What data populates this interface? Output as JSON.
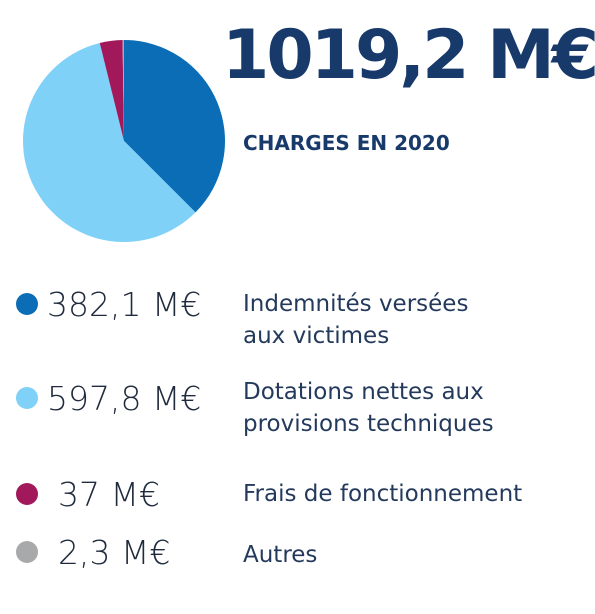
{
  "header": {
    "total": "1019,2 M€",
    "subtitle": "CHARGES EN 2020"
  },
  "chart_data": {
    "type": "pie",
    "title": "CHARGES EN 2020",
    "total": 1019.2,
    "unit": "M€",
    "slices": [
      {
        "value": 382.1,
        "value_label": "382,1 M€",
        "label": "Indemnités versées aux victimes",
        "color": "#0a6db5"
      },
      {
        "value": 597.8,
        "value_label": "597,8 M€",
        "label": "Dotations nettes aux provisions techniques",
        "color": "#7fd1f7"
      },
      {
        "value": 37,
        "value_label": "37 M€",
        "label": "Frais de fonctionnement",
        "color": "#a2195b"
      },
      {
        "value": 2.3,
        "value_label": "2,3 M€",
        "label": "Autres",
        "color": "#a8a9ab"
      }
    ]
  }
}
